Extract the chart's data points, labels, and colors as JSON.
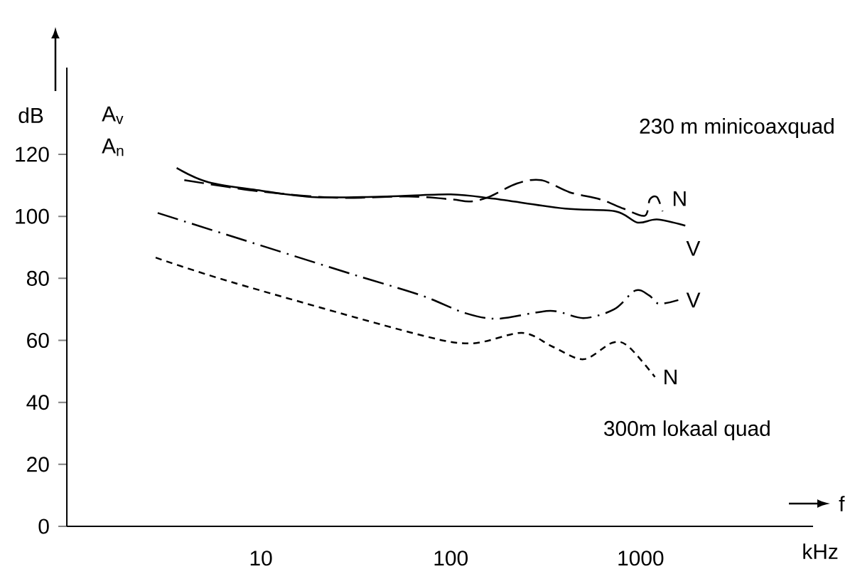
{
  "chart_data": {
    "type": "line",
    "xlabel": "kHz",
    "ylabel": "dB",
    "annotations": [
      "230 m minicoaxquad",
      "300m lokaal quad",
      "A$_{v}$",
      "A$_{n}$",
      "f"
    ],
    "log": "x",
    "xlim": [
      0.95,
      8100
    ],
    "xticks": [
      10,
      100,
      1000
    ],
    "ylim": [
      0,
      148
    ],
    "yticks": [
      0,
      20,
      40,
      60,
      80,
      100,
      120
    ],
    "series": [
      {
        "name": "V",
        "color": "#000000",
        "line_style": "solid",
        "x": [
          3.6,
          5.3,
          10,
          19.4,
          46,
          100,
          168,
          400,
          740,
          965,
          1220,
          1720
        ],
        "values": [
          115.6,
          111,
          108.3,
          106.2,
          106.4,
          107.1,
          105.7,
          102.5,
          101.6,
          98,
          99,
          97
        ]
      },
      {
        "name": "N",
        "color": "#000000",
        "line_style": "longdashed",
        "x": [
          3.95,
          10,
          25,
          60,
          100,
          126,
          158,
          223,
          299,
          422,
          612,
          813,
          1052,
          1119,
          1220,
          1306
        ],
        "values": [
          111.7,
          108,
          106,
          106.4,
          105.5,
          104.8,
          106.2,
          110.6,
          111.7,
          107.8,
          105.5,
          102.5,
          100.2,
          105.5,
          106.2,
          101.6
        ]
      },
      {
        "name": "V",
        "color": "#000000",
        "line_style": "dashdot",
        "x": [
          2.86,
          10,
          30,
          70,
          119,
          178,
          334,
          500,
          725,
          940,
          1110,
          1250,
          1580
        ],
        "values": [
          101.1,
          90.6,
          81.4,
          74.5,
          68.8,
          67,
          69.5,
          67.2,
          70,
          76.1,
          74.5,
          71.8,
          73
        ]
      },
      {
        "name": "N",
        "color": "#000000",
        "line_style": "dashed",
        "x": [
          2.79,
          7.1,
          61,
          126,
          237,
          343,
          500,
          708,
          863,
          1190
        ],
        "values": [
          86.7,
          78.7,
          62.6,
          59,
          62.4,
          58,
          53.9,
          59.2,
          58,
          48.2
        ]
      }
    ]
  }
}
